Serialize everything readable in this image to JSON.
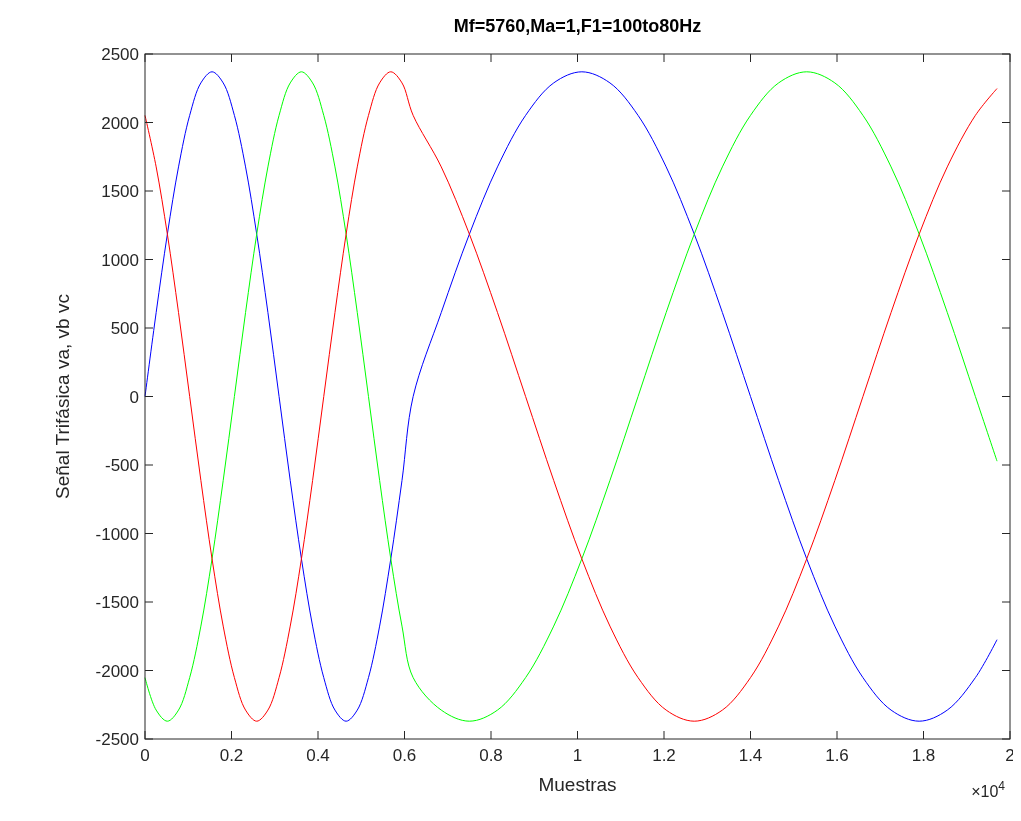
{
  "chart_data": {
    "type": "line",
    "title": "Mf=5760,Ma=1,F1=100to80Hz",
    "xlabel": "Muestras",
    "ylabel": "Señal Trifásica va, vb vc",
    "x": [
      0,
      0.0258,
      0.0517,
      0.0775,
      0.1033,
      0.1292,
      0.155,
      0.1808,
      0.2067,
      0.2325,
      0.2583,
      0.2842,
      0.31,
      0.3358,
      0.3617,
      0.3875,
      0.4133,
      0.4392,
      0.465,
      0.4908,
      0.5167,
      0.5425,
      0.5683,
      0.5942,
      0.62,
      0.685,
      0.75,
      0.815,
      0.88,
      0.945,
      1.01,
      1.075,
      1.14,
      1.205,
      1.27,
      1.335,
      1.4,
      1.465,
      1.53,
      1.595,
      1.66,
      1.725,
      1.79,
      1.855,
      1.92,
      1.97
    ],
    "series": [
      {
        "color": "#0000ff",
        "values": [
          0,
          613,
          1185,
          1676,
          2052,
          2289,
          2370,
          2289,
          2052,
          1676,
          1185,
          613,
          0,
          -613,
          -1185,
          -1676,
          -2052,
          -2289,
          -2370,
          -2289,
          -2052,
          -1676,
          -1185,
          -613,
          0,
          613,
          1185,
          1676,
          2052,
          2289,
          2370,
          2289,
          2052,
          1676,
          1185,
          613,
          0,
          -613,
          -1185,
          -1676,
          -2052,
          -2289,
          -2370,
          -2289,
          -2052,
          -1775
        ]
      },
      {
        "color": "#00ff00",
        "values": [
          -2052,
          -2289,
          -2370,
          -2289,
          -2052,
          -1676,
          -1185,
          -613,
          0,
          613,
          1185,
          1676,
          2052,
          2289,
          2370,
          2289,
          2052,
          1676,
          1185,
          613,
          0,
          -613,
          -1185,
          -1676,
          -2052,
          -2289,
          -2370,
          -2289,
          -2052,
          -1676,
          -1185,
          -613,
          0,
          613,
          1185,
          1676,
          2052,
          2289,
          2370,
          2289,
          2052,
          1676,
          1185,
          613,
          0,
          -472
        ]
      },
      {
        "color": "#ff0000",
        "values": [
          2052,
          1676,
          1185,
          613,
          0,
          -613,
          -1185,
          -1676,
          -2052,
          -2289,
          -2370,
          -2289,
          -2052,
          -1676,
          -1185,
          -613,
          0,
          613,
          1185,
          1676,
          2052,
          2289,
          2370,
          2289,
          2052,
          1676,
          1185,
          613,
          0,
          -613,
          -1185,
          -1676,
          -2052,
          -2289,
          -2370,
          -2289,
          -2052,
          -1676,
          -1185,
          -613,
          0,
          613,
          1185,
          1676,
          2052,
          2248
        ]
      }
    ],
    "xlim": [
      0,
      2
    ],
    "xticks": [
      0,
      0.2,
      0.4,
      0.6,
      0.8,
      1,
      1.2,
      1.4,
      1.6,
      1.8,
      2
    ],
    "ylim": [
      -2500,
      2500
    ],
    "yticks": [
      -2500,
      -2000,
      -1500,
      -1000,
      -500,
      0,
      500,
      1000,
      1500,
      2000,
      2500
    ],
    "annotations": [
      "×10$^{4}$"
    ],
    "grid": false,
    "marker": "none",
    "line_style": "solid"
  }
}
